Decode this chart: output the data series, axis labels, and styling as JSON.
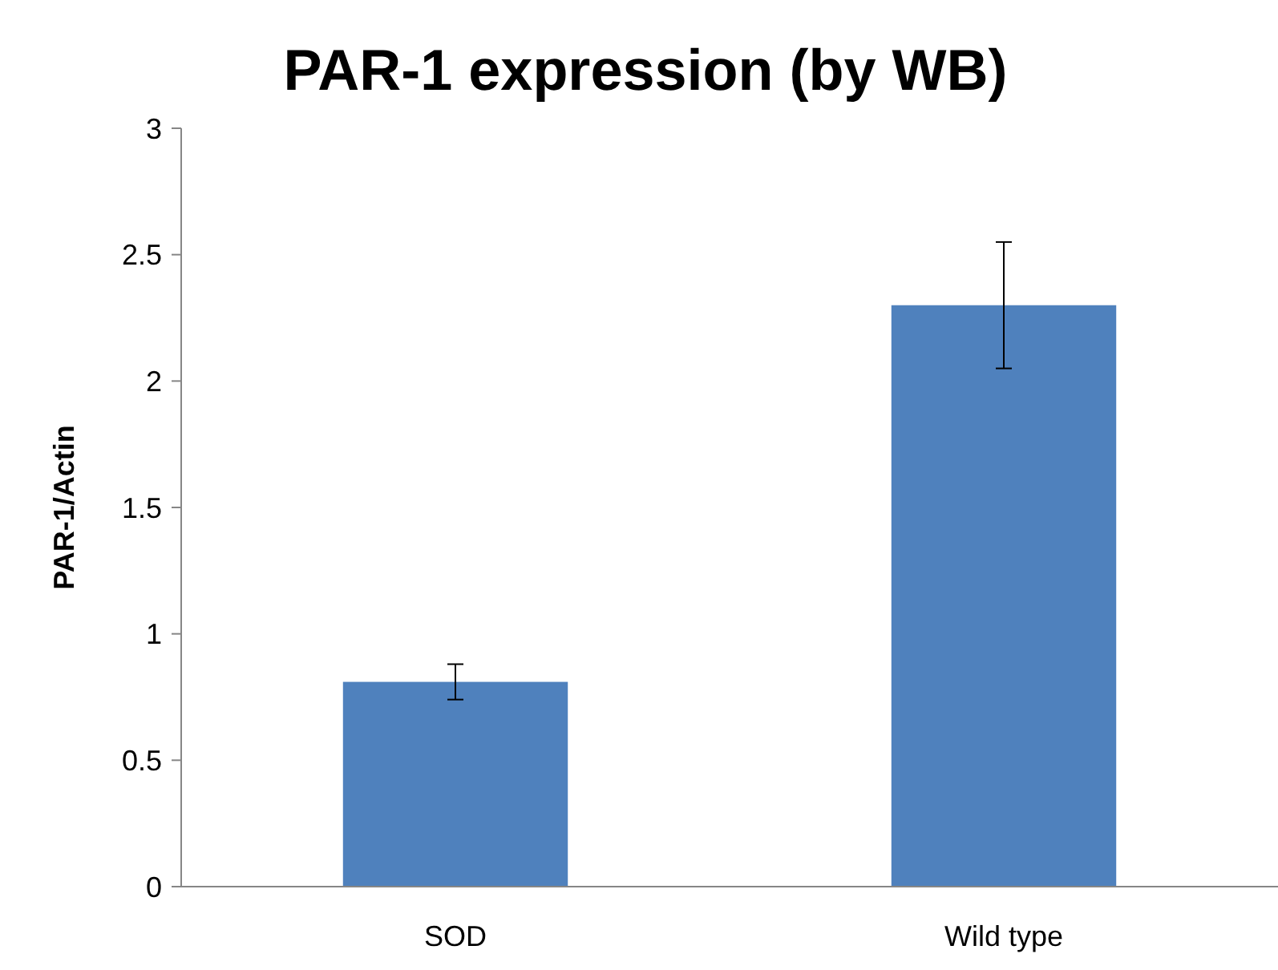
{
  "chart_data": {
    "type": "bar",
    "title": "PAR-1 expression (by WB)",
    "ylabel": "PAR-1/Actin",
    "categories": [
      "SOD",
      "Wild type"
    ],
    "values": [
      0.81,
      2.3
    ],
    "errors": [
      0.07,
      0.25
    ],
    "color": "#4f81bd",
    "ylim": [
      0,
      3
    ],
    "yticks": [
      0,
      0.5,
      1,
      1.5,
      2,
      2.5,
      3
    ],
    "grid": false
  }
}
